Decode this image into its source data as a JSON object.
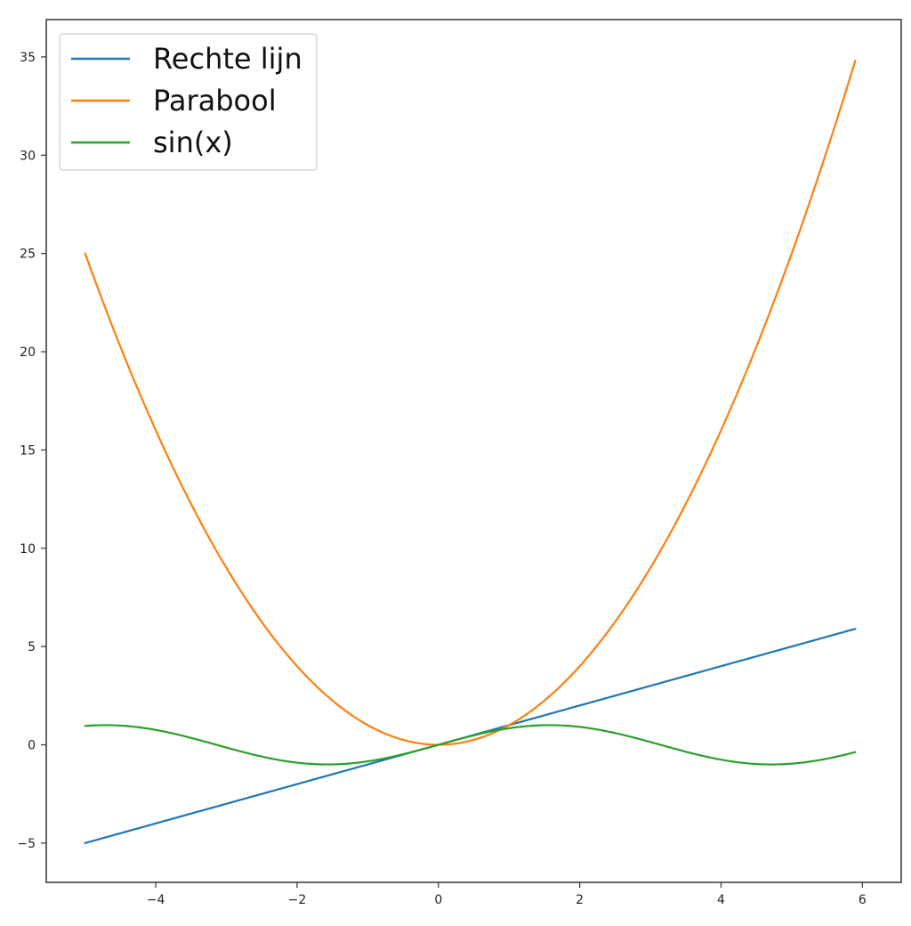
{
  "chart_data": {
    "type": "line",
    "title": "",
    "xlabel": "",
    "ylabel": "",
    "xlim": [
      -5.55,
      6.55
    ],
    "ylim": [
      -7,
      36.9
    ],
    "x_ticks": [
      -4,
      -2,
      0,
      2,
      4,
      6
    ],
    "x_tick_labels": [
      "−4",
      "−2",
      "0",
      "2",
      "4",
      "6"
    ],
    "y_ticks": [
      -5,
      0,
      5,
      10,
      15,
      20,
      25,
      30,
      35
    ],
    "y_tick_labels": [
      "−5",
      "0",
      "5",
      "10",
      "15",
      "20",
      "25",
      "30",
      "35"
    ],
    "grid": false,
    "legend": "top-left",
    "x_range": [
      -5,
      5.9
    ],
    "series": [
      {
        "name": "Rechte lijn",
        "function": "x",
        "color": "#1f77b4",
        "x": [
          -5,
          5.9
        ],
        "y": [
          -5,
          5.9
        ]
      },
      {
        "name": "Parabool",
        "function": "x^2",
        "color": "#ff7f0e",
        "x": [
          -5,
          -4,
          -3,
          -2,
          -1,
          0,
          1,
          2,
          3,
          4,
          5,
          5.9
        ],
        "y": [
          25,
          16,
          9,
          4,
          1,
          0,
          1,
          4,
          9,
          16,
          25,
          34.81
        ]
      },
      {
        "name": "sin(x)",
        "function": "sin(x)",
        "color": "#2ca02c",
        "x": [
          -5,
          -4,
          -3,
          -2,
          -1,
          0,
          1,
          2,
          3,
          4,
          5,
          5.9
        ],
        "y": [
          0.96,
          0.76,
          -0.14,
          -0.91,
          -0.84,
          0,
          0.84,
          0.91,
          0.14,
          -0.76,
          -0.96,
          -0.37
        ]
      }
    ]
  }
}
